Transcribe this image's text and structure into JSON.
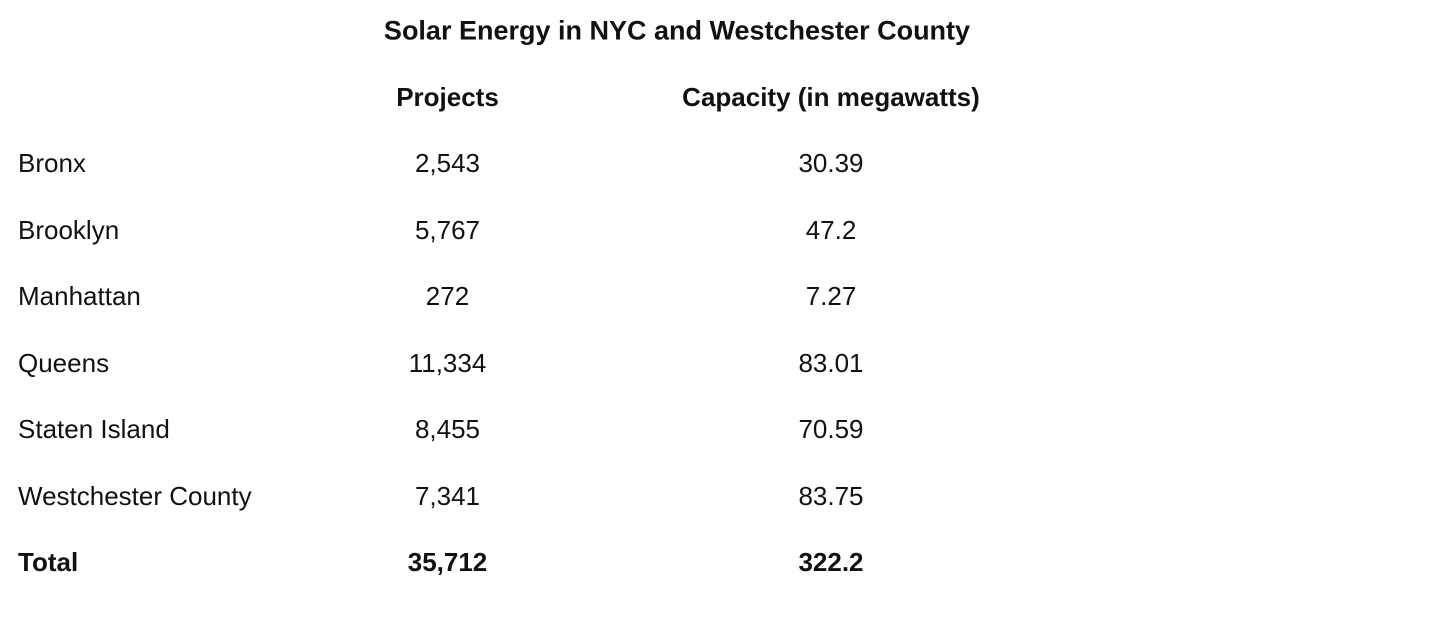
{
  "title": "Solar Energy in NYC and Westchester County",
  "table": {
    "headers": [
      "Projects",
      "Capacity (in megawatts)"
    ],
    "rows": [
      [
        "Bronx",
        "2,543",
        "30.39"
      ],
      [
        "Brooklyn",
        "5,767",
        "47.2"
      ],
      [
        "Manhattan",
        "272",
        "7.27"
      ],
      [
        "Queens",
        "11,334",
        "83.01"
      ],
      [
        "Staten Island",
        "8,455",
        "70.59"
      ],
      [
        "Westchester County",
        "7,341",
        "83.75"
      ]
    ],
    "total": [
      "Total",
      "35,712",
      "322.2"
    ]
  }
}
